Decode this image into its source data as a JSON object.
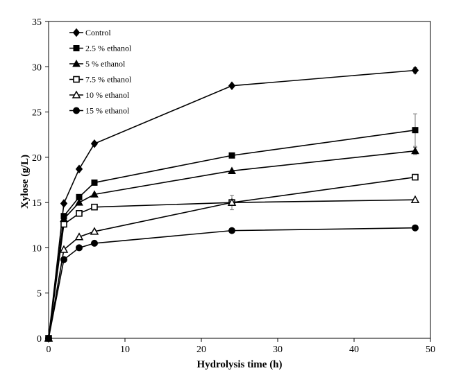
{
  "chart_data": {
    "type": "line",
    "title": "",
    "xlabel": "Hydrolysis time (h)",
    "ylabel": "Xylose (g/L)",
    "xlim": [
      0,
      50
    ],
    "ylim": [
      0,
      35
    ],
    "xticks": [
      0,
      10,
      20,
      30,
      40,
      50
    ],
    "yticks": [
      0,
      5,
      10,
      15,
      20,
      25,
      30,
      35
    ],
    "grid": false,
    "legend_position": "top-left",
    "x": [
      0,
      2,
      4,
      6,
      24,
      48
    ],
    "series": [
      {
        "name": "Control",
        "marker": "diamond-filled",
        "values": [
          0,
          14.9,
          18.7,
          21.5,
          27.9,
          29.6
        ],
        "errors": [
          0,
          0,
          0,
          0,
          0,
          0.3
        ]
      },
      {
        "name": "2.5 % ethanol",
        "marker": "square-filled",
        "values": [
          0,
          13.5,
          15.6,
          17.2,
          20.2,
          23.0
        ],
        "errors": [
          0,
          0,
          0,
          0,
          0,
          1.8
        ]
      },
      {
        "name": "5 % ethanol",
        "marker": "triangle-filled",
        "values": [
          0,
          13.2,
          15.0,
          15.9,
          18.5,
          20.7
        ],
        "errors": [
          0,
          0,
          0,
          0,
          0,
          0.4
        ]
      },
      {
        "name": "7.5 % ethanol",
        "marker": "square-open",
        "values": [
          0,
          12.6,
          13.8,
          14.5,
          15.0,
          17.8
        ],
        "errors": [
          0,
          0,
          0,
          0,
          0.8,
          0
        ]
      },
      {
        "name": "10 % ethanol",
        "marker": "triangle-open",
        "values": [
          0,
          9.8,
          11.2,
          11.8,
          15.0,
          15.3
        ],
        "errors": [
          0,
          0,
          0,
          0,
          0,
          0
        ]
      },
      {
        "name": "15 % ethanol",
        "marker": "circle-filled",
        "values": [
          0,
          8.7,
          10.0,
          10.5,
          11.9,
          12.2
        ],
        "errors": [
          0,
          0,
          0,
          0,
          0,
          0
        ]
      }
    ]
  }
}
